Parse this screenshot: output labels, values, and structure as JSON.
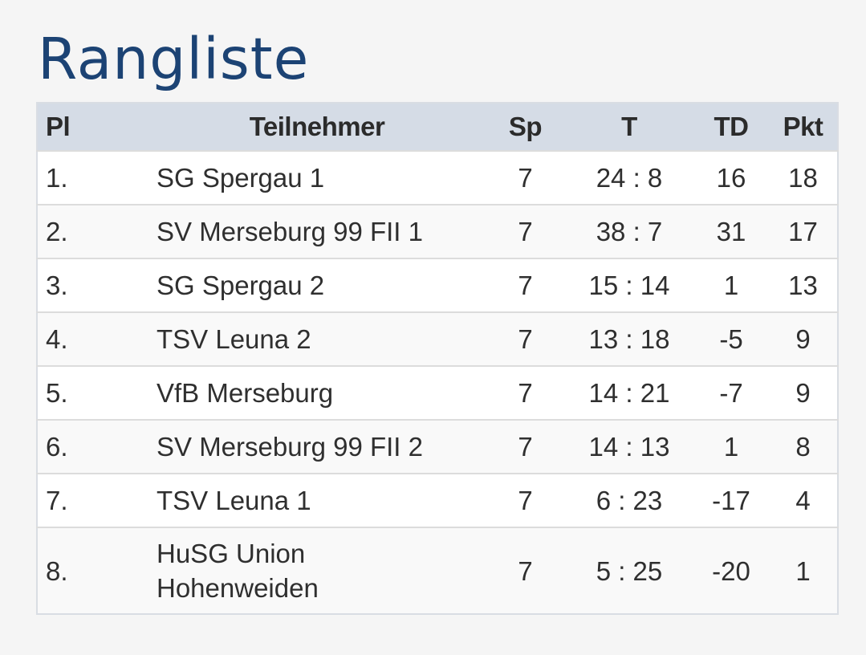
{
  "title": "Rangliste",
  "table": {
    "headers": {
      "pl": "Pl",
      "teilnehmer": "Teilnehmer",
      "sp": "Sp",
      "t": "T",
      "td": "TD",
      "pkt": "Pkt"
    },
    "rows": [
      {
        "pl": "1.",
        "name": "SG Spergau 1",
        "sp": "7",
        "t": "24 : 8",
        "td": "16",
        "pkt": "18"
      },
      {
        "pl": "2.",
        "name": "SV Merseburg 99 FII 1",
        "sp": "7",
        "t": "38 : 7",
        "td": "31",
        "pkt": "17"
      },
      {
        "pl": "3.",
        "name": "SG Spergau 2",
        "sp": "7",
        "t": "15 : 14",
        "td": "1",
        "pkt": "13"
      },
      {
        "pl": "4.",
        "name": "TSV Leuna 2",
        "sp": "7",
        "t": "13 : 18",
        "td": "-5",
        "pkt": "9"
      },
      {
        "pl": "5.",
        "name": "VfB Merseburg",
        "sp": "7",
        "t": "14 : 21",
        "td": "-7",
        "pkt": "9"
      },
      {
        "pl": "6.",
        "name": "SV Merseburg 99 FII 2",
        "sp": "7",
        "t": "14 : 13",
        "td": "1",
        "pkt": "8"
      },
      {
        "pl": "7.",
        "name": "TSV Leuna 1",
        "sp": "7",
        "t": "6 : 23",
        "td": "-17",
        "pkt": "4"
      },
      {
        "pl": "8.",
        "name_line1": "HuSG Union",
        "name_line2": "Hohenweiden",
        "sp": "7",
        "t": "5 : 25",
        "td": "-20",
        "pkt": "1"
      }
    ]
  }
}
